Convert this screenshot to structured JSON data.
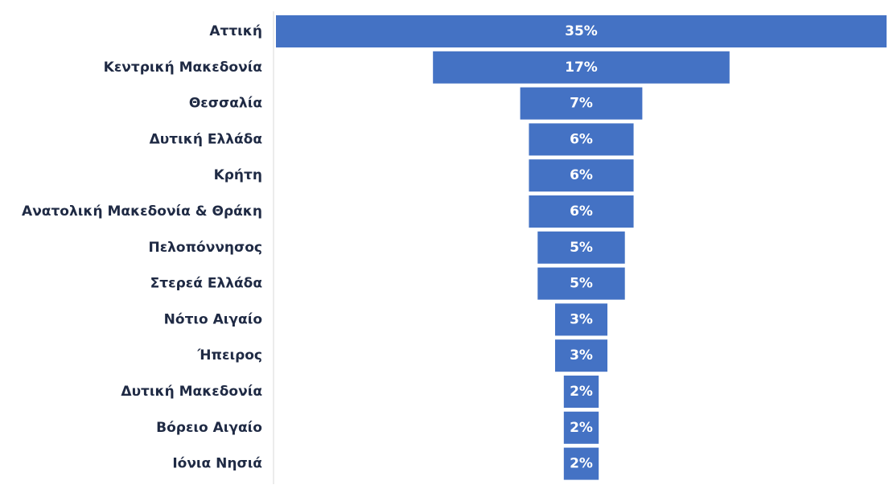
{
  "chart_data": {
    "type": "bar",
    "orientation": "horizontal",
    "style": "funnel",
    "categories": [
      "Αττική",
      "Κεντρική Μακεδονία",
      "Θεσσαλία",
      "Δυτική Ελλάδα",
      "Κρήτη",
      "Ανατολική Μακεδονία & Θράκη",
      "Πελοπόννησος",
      "Στερεά Ελλάδα",
      "Νότιο Αιγαίο",
      "Ήπειρος",
      "Δυτική Μακεδονία",
      "Βόρειο Αιγαίο",
      "Ιόνια Νησιά"
    ],
    "values": [
      35,
      17,
      7,
      6,
      6,
      6,
      5,
      5,
      3,
      3,
      2,
      2,
      2
    ],
    "data_labels": [
      "35%",
      "17%",
      "7%",
      "6%",
      "6%",
      "6%",
      "5%",
      "5%",
      "3%",
      "3%",
      "2%",
      "2%",
      "2%"
    ],
    "unit": "%",
    "title": "",
    "xlabel": "",
    "ylabel": "",
    "xlim": [
      0,
      35
    ],
    "grid": false,
    "legend": "none",
    "colors": {
      "bar": "#4472c4",
      "bar_label": "#ffffff",
      "category_label": "#1f2a44",
      "axis_line": "#d9d9d9"
    }
  }
}
